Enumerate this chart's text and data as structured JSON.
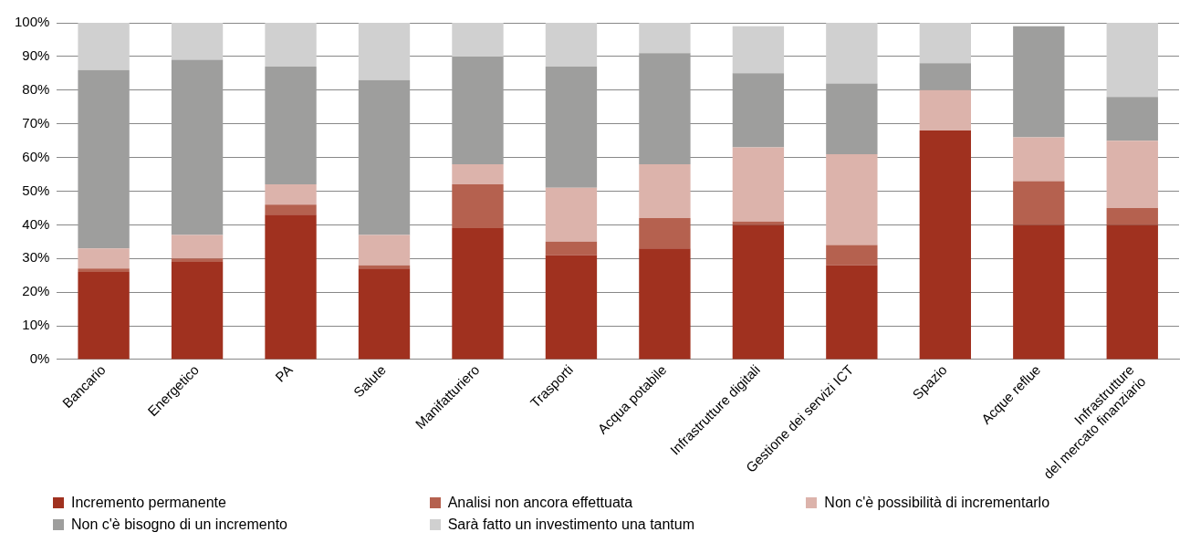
{
  "chart_data": {
    "type": "bar",
    "stacked": true,
    "categories": [
      "Bancario",
      "Energetico",
      "PA",
      "Salute",
      "Manifatturiero",
      "Trasporti",
      "Acqua potabile",
      "Infrastrutture digitali",
      "Gestione dei servizi ICT",
      "Spazio",
      "Acque reflue",
      "Infrastrutture\ndel mercato finanziario"
    ],
    "series": [
      {
        "name": "Incremento permanente",
        "color": "#a0311f",
        "values": [
          26,
          29,
          43,
          27,
          39,
          31,
          33,
          40,
          28,
          68,
          40,
          40
        ]
      },
      {
        "name": "Analisi non ancora effettuata",
        "color": "#b5614f",
        "values": [
          1,
          1,
          3,
          1,
          13,
          4,
          9,
          1,
          6,
          0,
          13,
          5
        ]
      },
      {
        "name": "Non c'è possibilità di incrementarlo",
        "color": "#dcb3ab",
        "values": [
          6,
          7,
          6,
          9,
          6,
          16,
          16,
          22,
          27,
          12,
          13,
          20
        ]
      },
      {
        "name": "Non c'è bisogno di un incremento",
        "color": "#9e9e9d",
        "values": [
          53,
          52,
          35,
          46,
          32,
          36,
          33,
          22,
          21,
          8,
          33,
          13
        ]
      },
      {
        "name": "Sarà fatto un investimento una tantum",
        "color": "#d0d0d0",
        "values": [
          14,
          11,
          13,
          17,
          10,
          13,
          9,
          14,
          18,
          12,
          0,
          22
        ]
      }
    ],
    "ylim": [
      0,
      100
    ],
    "yticks": [
      {
        "value": 0,
        "label": "0%"
      },
      {
        "value": 10,
        "label": "10%"
      },
      {
        "value": 20,
        "label": "20%"
      },
      {
        "value": 30,
        "label": "30%"
      },
      {
        "value": 40,
        "label": "40%"
      },
      {
        "value": 50,
        "label": "50%"
      },
      {
        "value": 60,
        "label": "60%"
      },
      {
        "value": 70,
        "label": "70%"
      },
      {
        "value": 80,
        "label": "80%"
      },
      {
        "value": 90,
        "label": "90%"
      },
      {
        "value": 100,
        "label": "100%"
      }
    ],
    "grid": "y",
    "legend": "bottom"
  }
}
